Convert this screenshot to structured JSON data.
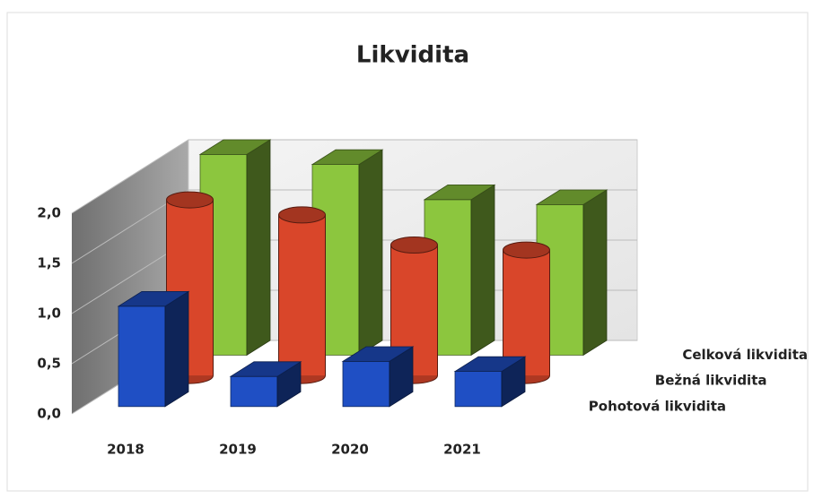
{
  "chart_data": {
    "type": "bar3d",
    "title": "Likvidita",
    "categories": [
      "2018",
      "2019",
      "2020",
      "2021"
    ],
    "series": [
      {
        "name": "Pohotová likvidita",
        "color": "#1f4fc4",
        "shape": "box",
        "values": [
          1.0,
          0.3,
          0.45,
          0.35
        ]
      },
      {
        "name": "Bežná likvidita",
        "color": "#d9462a",
        "shape": "cylinder",
        "values": [
          1.75,
          1.6,
          1.3,
          1.25
        ]
      },
      {
        "name": "Celková likvidita",
        "color": "#8cc63e",
        "shape": "box",
        "values": [
          2.0,
          1.9,
          1.55,
          1.5
        ]
      }
    ],
    "ylim": [
      0,
      2
    ],
    "yticks": [
      {
        "value": 0,
        "label": "0,0"
      },
      {
        "value": 0.5,
        "label": "0,5"
      },
      {
        "value": 1,
        "label": "1,0"
      },
      {
        "value": 1.5,
        "label": "1,5"
      },
      {
        "value": 2,
        "label": "2,0"
      }
    ],
    "grid": true
  }
}
